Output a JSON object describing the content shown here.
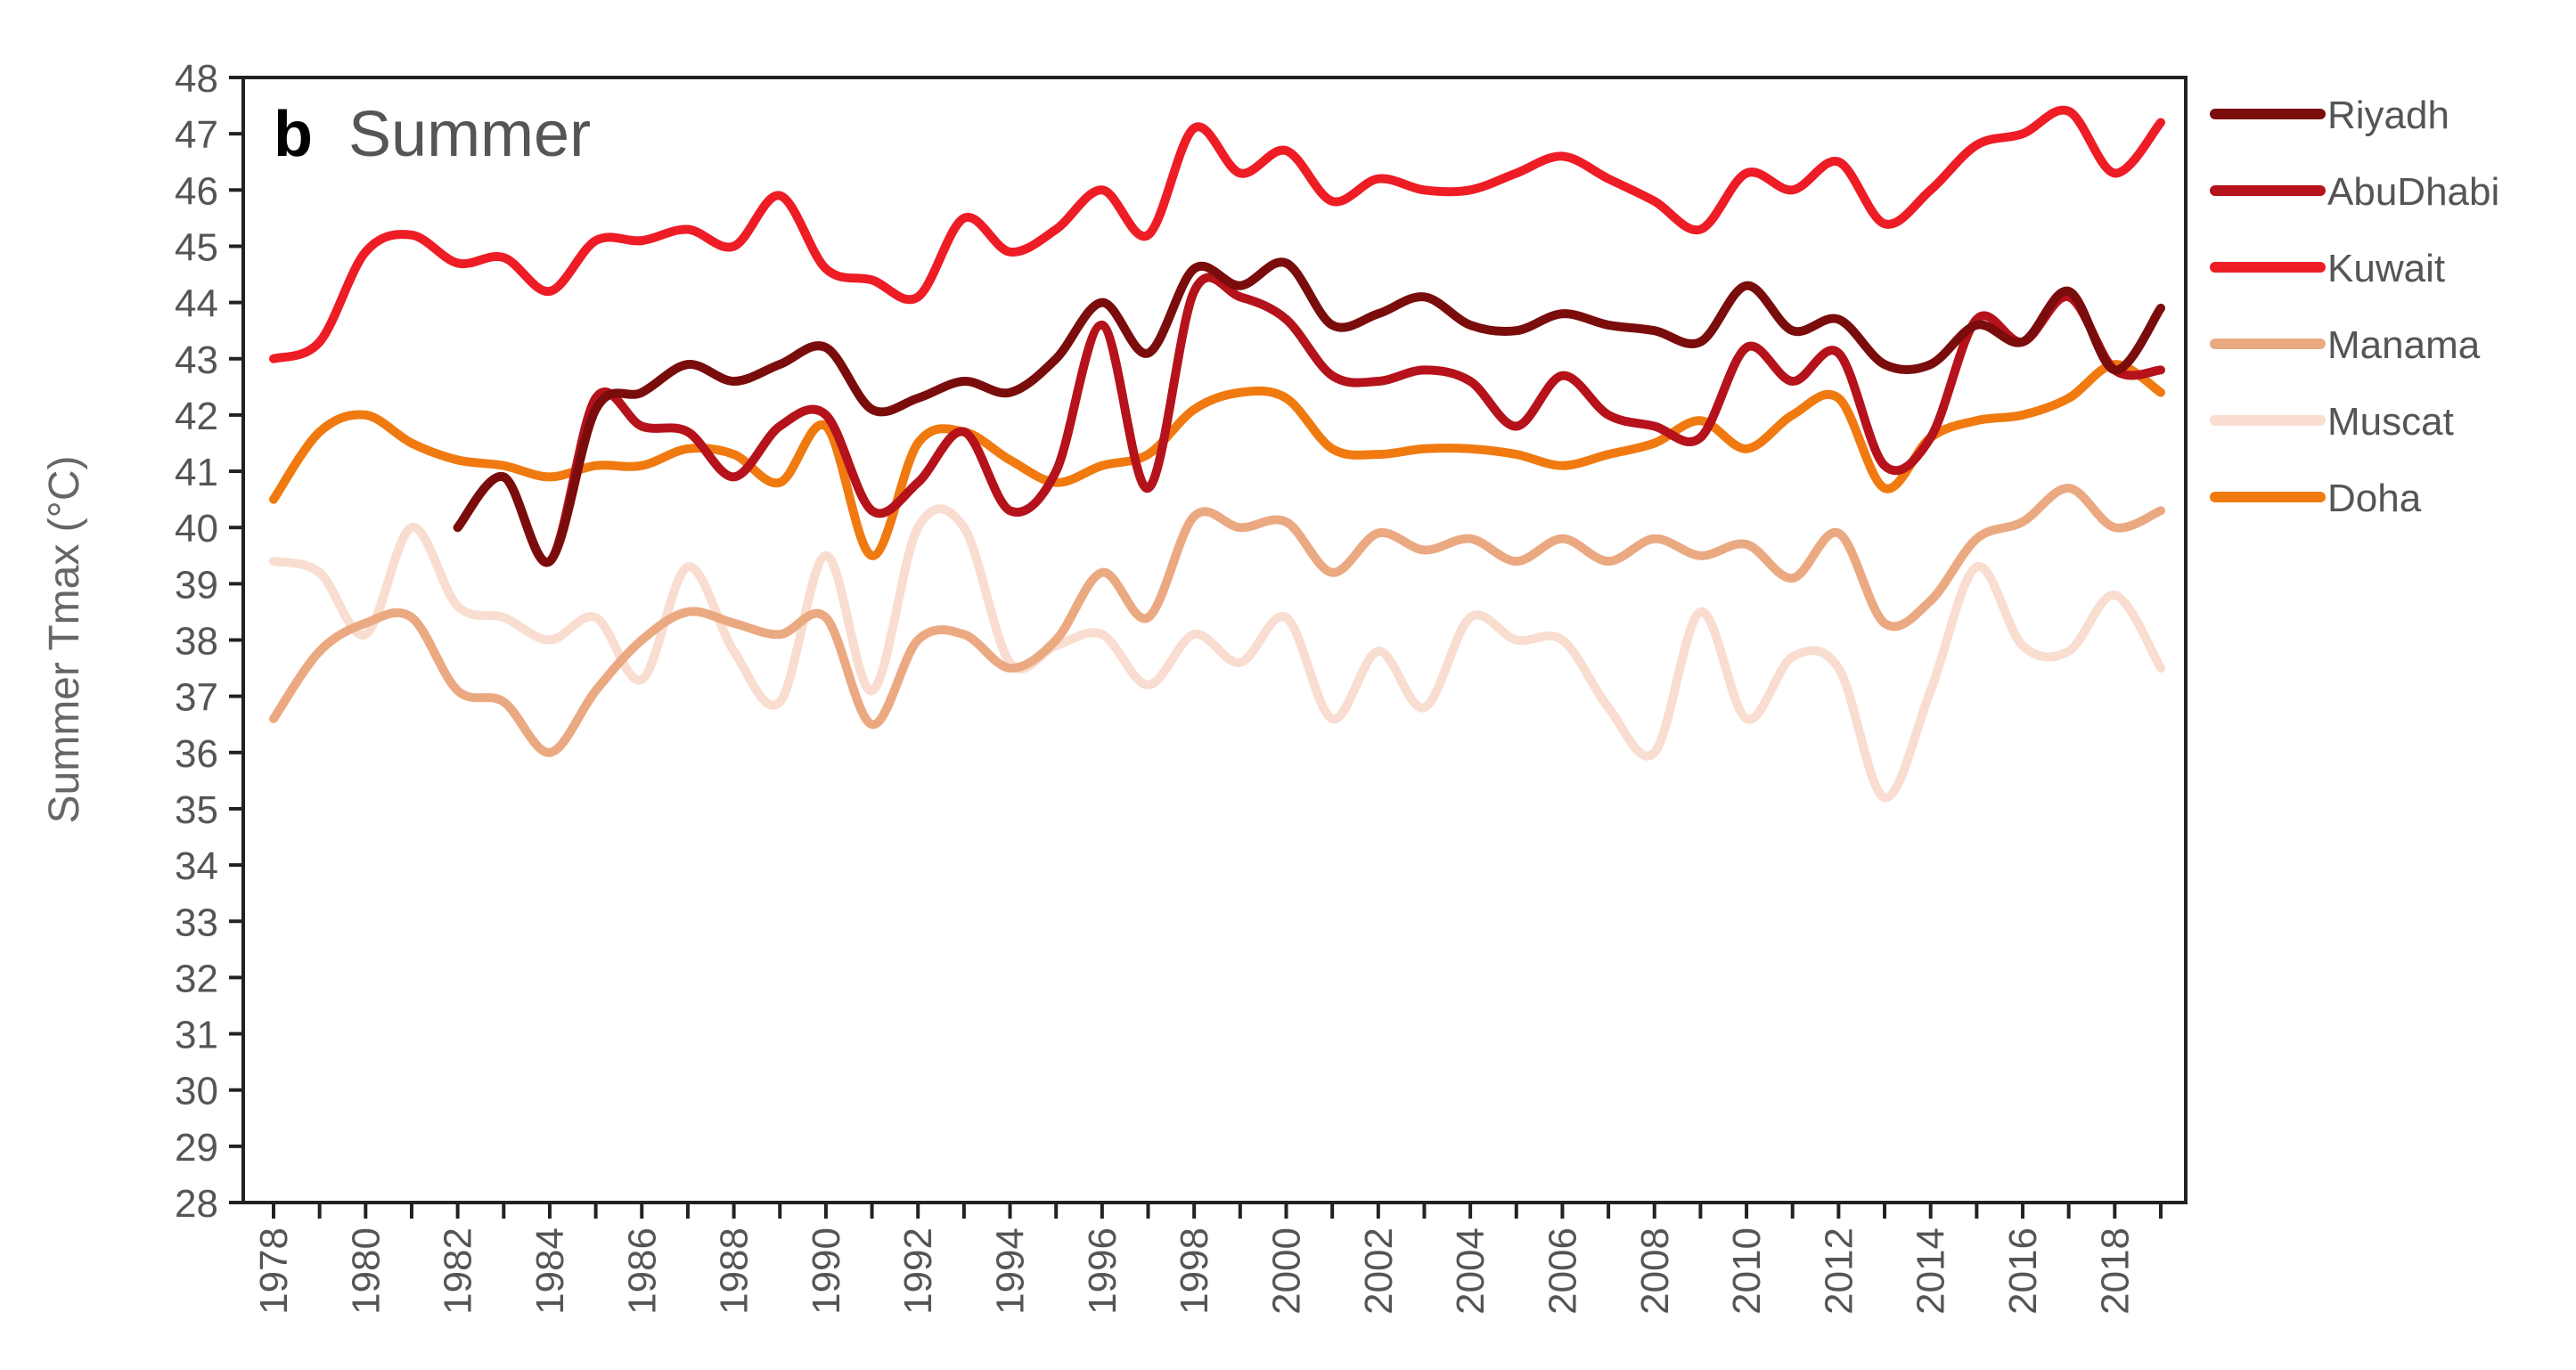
{
  "chart_data": {
    "type": "line",
    "panel_letter": "b",
    "title": "Summer",
    "xlabel": "",
    "ylabel": "Summer Tmax (°C)",
    "ylim": [
      28,
      48
    ],
    "xlim": [
      1978,
      2019
    ],
    "yticks": [
      28,
      29,
      30,
      31,
      32,
      33,
      34,
      35,
      36,
      37,
      38,
      39,
      40,
      41,
      42,
      43,
      44,
      45,
      46,
      47,
      48
    ],
    "xtick_labels": [
      "1978",
      "1980",
      "1982",
      "1984",
      "1986",
      "1988",
      "1990",
      "1992",
      "1994",
      "1996",
      "1998",
      "2000",
      "2002",
      "2004",
      "2006",
      "2008",
      "2010",
      "2012",
      "2014",
      "2016",
      "2018"
    ],
    "grid": false,
    "legend_position": "right",
    "series": [
      {
        "name": "Riyadh",
        "color": "#7a0c0c",
        "x": [
          1982,
          1983,
          1984,
          1985,
          1986,
          1987,
          1988,
          1989,
          1990,
          1991,
          1992,
          1993,
          1994,
          1995,
          1996,
          1997,
          1998,
          1999,
          2000,
          2001,
          2002,
          2003,
          2004,
          2005,
          2006,
          2007,
          2008,
          2009,
          2010,
          2011,
          2012,
          2013,
          2014,
          2015,
          2016,
          2017,
          2018,
          2019
        ],
        "values": [
          40.0,
          40.9,
          39.4,
          42.1,
          42.4,
          42.9,
          42.6,
          42.9,
          43.2,
          42.1,
          42.3,
          42.6,
          42.4,
          43.0,
          44.0,
          43.1,
          44.6,
          44.3,
          44.7,
          43.6,
          43.8,
          44.1,
          43.6,
          43.5,
          43.8,
          43.6,
          43.5,
          43.3,
          44.3,
          43.5,
          43.7,
          42.9,
          42.9,
          43.6,
          43.3,
          44.2,
          42.8,
          43.9
        ]
      },
      {
        "name": "AbuDhabi",
        "color": "#b5121b",
        "x": [
          1982,
          1983,
          1984,
          1985,
          1986,
          1987,
          1988,
          1989,
          1990,
          1991,
          1992,
          1993,
          1994,
          1995,
          1996,
          1997,
          1998,
          1999,
          2000,
          2001,
          2002,
          2003,
          2004,
          2005,
          2006,
          2007,
          2008,
          2009,
          2010,
          2011,
          2012,
          2013,
          2014,
          2015,
          2016,
          2017,
          2018,
          2019
        ],
        "values": [
          40.0,
          40.9,
          39.4,
          42.3,
          41.8,
          41.7,
          40.9,
          41.8,
          42.0,
          40.3,
          40.8,
          41.7,
          40.3,
          41.0,
          43.6,
          40.7,
          44.2,
          44.1,
          43.7,
          42.7,
          42.6,
          42.8,
          42.6,
          41.8,
          42.7,
          42.0,
          41.8,
          41.6,
          43.2,
          42.6,
          43.1,
          41.1,
          41.6,
          43.7,
          43.3,
          44.1,
          42.8,
          42.8
        ]
      },
      {
        "name": "Kuwait",
        "color": "#ee1c25",
        "x": [
          1978,
          1979,
          1980,
          1981,
          1982,
          1983,
          1984,
          1985,
          1986,
          1987,
          1988,
          1989,
          1990,
          1991,
          1992,
          1993,
          1994,
          1995,
          1996,
          1997,
          1998,
          1999,
          2000,
          2001,
          2002,
          2003,
          2004,
          2005,
          2006,
          2007,
          2008,
          2009,
          2010,
          2011,
          2012,
          2013,
          2014,
          2015,
          2016,
          2017,
          2018,
          2019
        ],
        "values": [
          43.0,
          43.3,
          44.9,
          45.2,
          44.7,
          44.8,
          44.2,
          45.1,
          45.1,
          45.3,
          45.0,
          45.9,
          44.6,
          44.4,
          44.1,
          45.5,
          44.9,
          45.3,
          46.0,
          45.2,
          47.1,
          46.3,
          46.7,
          45.8,
          46.2,
          46.0,
          46.0,
          46.3,
          46.6,
          46.2,
          45.8,
          45.3,
          46.3,
          46.0,
          46.5,
          45.4,
          46.0,
          46.8,
          47.0,
          47.4,
          46.3,
          47.2
        ]
      },
      {
        "name": "Manama",
        "color": "#eba982",
        "x": [
          1978,
          1979,
          1980,
          1981,
          1982,
          1983,
          1984,
          1985,
          1986,
          1987,
          1988,
          1989,
          1990,
          1991,
          1992,
          1993,
          1994,
          1995,
          1996,
          1997,
          1998,
          1999,
          2000,
          2001,
          2002,
          2003,
          2004,
          2005,
          2006,
          2007,
          2008,
          2009,
          2010,
          2011,
          2012,
          2013,
          2014,
          2015,
          2016,
          2017,
          2018,
          2019
        ],
        "values": [
          36.6,
          37.8,
          38.3,
          38.4,
          37.1,
          36.9,
          36.0,
          37.1,
          38.0,
          38.5,
          38.3,
          38.1,
          38.4,
          36.5,
          38.0,
          38.1,
          37.5,
          38.0,
          39.2,
          38.4,
          40.2,
          40.0,
          40.1,
          39.2,
          39.9,
          39.6,
          39.8,
          39.4,
          39.8,
          39.4,
          39.8,
          39.5,
          39.7,
          39.1,
          39.9,
          38.3,
          38.7,
          39.8,
          40.1,
          40.7,
          40.0,
          40.3
        ]
      },
      {
        "name": "Muscat",
        "color": "#f8ddd0",
        "x": [
          1978,
          1979,
          1980,
          1981,
          1982,
          1983,
          1984,
          1985,
          1986,
          1987,
          1988,
          1989,
          1990,
          1991,
          1992,
          1993,
          1994,
          1995,
          1996,
          1997,
          1998,
          1999,
          2000,
          2001,
          2002,
          2003,
          2004,
          2005,
          2006,
          2007,
          2008,
          2009,
          2010,
          2011,
          2012,
          2013,
          2014,
          2015,
          2016,
          2017,
          2018,
          2019
        ],
        "values": [
          39.4,
          39.2,
          38.1,
          40.0,
          38.6,
          38.4,
          38.0,
          38.4,
          37.3,
          39.3,
          37.8,
          36.9,
          39.5,
          37.1,
          40.0,
          40.0,
          37.6,
          37.9,
          38.1,
          37.2,
          38.1,
          37.6,
          38.4,
          36.6,
          37.8,
          36.8,
          38.4,
          38.0,
          38.0,
          36.8,
          36.0,
          38.5,
          36.6,
          37.7,
          37.5,
          35.2,
          37.1,
          39.3,
          37.9,
          37.8,
          38.8,
          37.5
        ]
      },
      {
        "name": "Doha",
        "color": "#f07a10",
        "x": [
          1978,
          1979,
          1980,
          1981,
          1982,
          1983,
          1984,
          1985,
          1986,
          1987,
          1988,
          1989,
          1990,
          1991,
          1992,
          1993,
          1994,
          1995,
          1996,
          1997,
          1998,
          1999,
          2000,
          2001,
          2002,
          2003,
          2004,
          2005,
          2006,
          2007,
          2008,
          2009,
          2010,
          2011,
          2012,
          2013,
          2014,
          2015,
          2016,
          2017,
          2018,
          2019
        ],
        "values": [
          40.5,
          41.7,
          42.0,
          41.5,
          41.2,
          41.1,
          40.9,
          41.1,
          41.1,
          41.4,
          41.3,
          40.8,
          41.8,
          39.5,
          41.5,
          41.7,
          41.2,
          40.8,
          41.1,
          41.3,
          42.1,
          42.4,
          42.3,
          41.4,
          41.3,
          41.4,
          41.4,
          41.3,
          41.1,
          41.3,
          41.5,
          41.9,
          41.4,
          42.0,
          42.3,
          40.7,
          41.6,
          41.9,
          42.0,
          42.3,
          42.9,
          42.4
        ]
      }
    ]
  }
}
